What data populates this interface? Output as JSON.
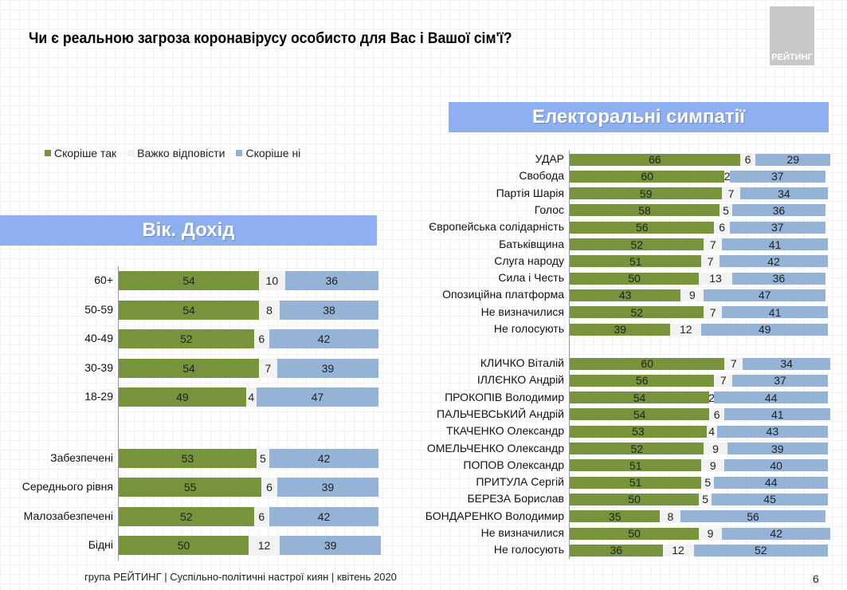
{
  "title": "Чи  є реальною загроза коронавірусу особисто для Вас і Вашої сім'ї?",
  "logo_text": "РЕЙТИНГ",
  "footer": "група РЕЙТИНГ | Суспільно-політичні настрої киян | квітень  2020",
  "page_number": "6",
  "colors": {
    "yes": "#77933c",
    "hard": "#f2f2f2",
    "no": "#95b3d7",
    "header": "#8eb0f0"
  },
  "legend": [
    "Скоріше так",
    "Важко відповісти",
    "Скоріше ні"
  ],
  "chart_data": [
    {
      "type": "bar",
      "stacked": true,
      "orientation": "horizontal",
      "title": "Вік. Дохід",
      "categories": [
        "60+",
        "50-59",
        "40-49",
        "30-39",
        "18-29",
        "",
        "Забезпечені",
        "Середнього рівня",
        "Малозабезпечені",
        "Бідні"
      ],
      "series": [
        {
          "name": "Скоріше так",
          "values": [
            54,
            54,
            52,
            54,
            49,
            null,
            53,
            55,
            52,
            50
          ]
        },
        {
          "name": "Важко відповісти",
          "values": [
            10,
            8,
            6,
            7,
            4,
            null,
            5,
            6,
            6,
            12
          ]
        },
        {
          "name": "Скоріше ні",
          "values": [
            36,
            38,
            42,
            39,
            47,
            null,
            42,
            39,
            42,
            39
          ]
        }
      ]
    },
    {
      "type": "bar",
      "stacked": true,
      "orientation": "horizontal",
      "title": "Електоральні симпатії",
      "categories": [
        "УДАР",
        "Свобода",
        "Партія Шарія",
        "Голос",
        "Європейська солідарність",
        "Батьківщина",
        "Слуга народу",
        "Сила і Честь",
        "Опозиційна платформа",
        "Не визначилися",
        "Не голосують",
        "",
        "КЛИЧКО Віталій",
        "ІЛЛЄНКО Андрій",
        "ПРОКОПІВ Володимир",
        "ПАЛЬЧЕВСЬКИЙ Андрій",
        "ТКАЧЕНКО Олександр",
        "ОМЕЛЬЧЕНКО Олександр",
        "ПОПОВ Олександр",
        "ПРИТУЛА Сергій",
        "БЕРЕЗА Борислав",
        "БОНДАРЕНКО Володимир",
        "Не визначилися",
        "Не голосують"
      ],
      "series": [
        {
          "name": "Скоріше так",
          "values": [
            66,
            60,
            59,
            58,
            56,
            52,
            51,
            50,
            43,
            52,
            39,
            null,
            60,
            56,
            54,
            54,
            53,
            52,
            51,
            51,
            50,
            35,
            50,
            36
          ]
        },
        {
          "name": "Важко відповісти",
          "values": [
            6,
            2,
            7,
            5,
            6,
            7,
            7,
            13,
            9,
            7,
            12,
            null,
            7,
            7,
            2,
            6,
            4,
            9,
            9,
            5,
            5,
            8,
            9,
            12
          ]
        },
        {
          "name": "Скоріше ні",
          "values": [
            29,
            37,
            34,
            36,
            37,
            41,
            42,
            36,
            47,
            41,
            49,
            null,
            34,
            37,
            44,
            41,
            43,
            39,
            40,
            44,
            45,
            56,
            42,
            52
          ]
        }
      ]
    }
  ]
}
